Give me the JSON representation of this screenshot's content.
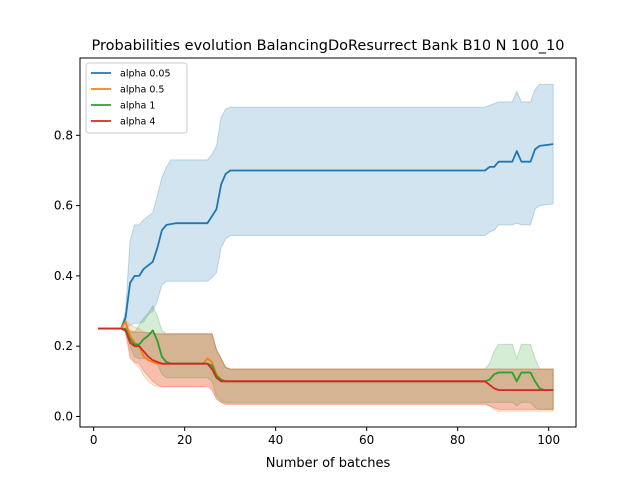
{
  "chart_data": {
    "type": "line",
    "title": "Probabilities evolution BalancingDoResurrect Bank B10 N 100_10",
    "xlabel": "Number of batches",
    "ylabel": "",
    "xlim": [
      -3,
      106
    ],
    "ylim": [
      -0.03,
      1.02
    ],
    "x_ticks": [
      0,
      20,
      40,
      60,
      80,
      100
    ],
    "y_ticks": [
      0.0,
      0.2,
      0.4,
      0.6,
      0.8
    ],
    "x_tick_labels": [
      "0",
      "20",
      "40",
      "60",
      "80",
      "100"
    ],
    "y_tick_labels": [
      "0.0",
      "0.2",
      "0.4",
      "0.6",
      "0.8"
    ],
    "grid": false,
    "legend_position": "top-left",
    "series": [
      {
        "name": "alpha 0.05",
        "color": "#1f77b4",
        "points": [
          [
            1,
            0.25
          ],
          [
            6,
            0.25
          ],
          [
            7,
            0.28
          ],
          [
            8,
            0.38
          ],
          [
            9,
            0.4
          ],
          [
            10,
            0.4
          ],
          [
            11,
            0.42
          ],
          [
            12,
            0.43
          ],
          [
            13,
            0.44
          ],
          [
            14,
            0.48
          ],
          [
            15,
            0.53
          ],
          [
            16,
            0.545
          ],
          [
            18,
            0.55
          ],
          [
            20,
            0.55
          ],
          [
            25,
            0.55
          ],
          [
            26,
            0.57
          ],
          [
            27,
            0.59
          ],
          [
            28,
            0.66
          ],
          [
            29,
            0.69
          ],
          [
            30,
            0.7
          ],
          [
            40,
            0.7
          ],
          [
            60,
            0.7
          ],
          [
            86,
            0.7
          ],
          [
            87,
            0.71
          ],
          [
            88,
            0.71
          ],
          [
            89,
            0.725
          ],
          [
            92,
            0.725
          ],
          [
            93,
            0.755
          ],
          [
            94,
            0.725
          ],
          [
            96,
            0.725
          ],
          [
            97,
            0.76
          ],
          [
            98,
            0.77
          ],
          [
            101,
            0.775
          ]
        ],
        "band_upper": [
          [
            1,
            0.25
          ],
          [
            6,
            0.25
          ],
          [
            7,
            0.3
          ],
          [
            8,
            0.5
          ],
          [
            9,
            0.545
          ],
          [
            10,
            0.545
          ],
          [
            11,
            0.56
          ],
          [
            12,
            0.57
          ],
          [
            13,
            0.58
          ],
          [
            14,
            0.63
          ],
          [
            15,
            0.68
          ],
          [
            16,
            0.71
          ],
          [
            17,
            0.73
          ],
          [
            20,
            0.73
          ],
          [
            25,
            0.73
          ],
          [
            26,
            0.745
          ],
          [
            27,
            0.77
          ],
          [
            28,
            0.85
          ],
          [
            29,
            0.875
          ],
          [
            30,
            0.88
          ],
          [
            86,
            0.88
          ],
          [
            87,
            0.885
          ],
          [
            88,
            0.89
          ],
          [
            89,
            0.895
          ],
          [
            92,
            0.895
          ],
          [
            93,
            0.925
          ],
          [
            94,
            0.895
          ],
          [
            96,
            0.895
          ],
          [
            97,
            0.93
          ],
          [
            98,
            0.945
          ],
          [
            101,
            0.945
          ]
        ],
        "band_lower": [
          [
            1,
            0.25
          ],
          [
            6,
            0.25
          ],
          [
            7,
            0.25
          ],
          [
            8,
            0.26
          ],
          [
            9,
            0.265
          ],
          [
            10,
            0.265
          ],
          [
            11,
            0.27
          ],
          [
            12,
            0.29
          ],
          [
            13,
            0.3
          ],
          [
            14,
            0.33
          ],
          [
            15,
            0.375
          ],
          [
            16,
            0.385
          ],
          [
            20,
            0.385
          ],
          [
            25,
            0.385
          ],
          [
            26,
            0.395
          ],
          [
            27,
            0.41
          ],
          [
            28,
            0.48
          ],
          [
            29,
            0.505
          ],
          [
            30,
            0.515
          ],
          [
            86,
            0.515
          ],
          [
            87,
            0.525
          ],
          [
            88,
            0.53
          ],
          [
            89,
            0.545
          ],
          [
            92,
            0.545
          ],
          [
            93,
            0.55
          ],
          [
            94,
            0.545
          ],
          [
            96,
            0.545
          ],
          [
            97,
            0.59
          ],
          [
            98,
            0.6
          ],
          [
            101,
            0.605
          ]
        ]
      },
      {
        "name": "alpha 0.5",
        "color": "#ff7f0e",
        "points": [
          [
            1,
            0.25
          ],
          [
            6,
            0.25
          ],
          [
            7,
            0.27
          ],
          [
            8,
            0.23
          ],
          [
            9,
            0.21
          ],
          [
            10,
            0.2
          ],
          [
            11,
            0.17
          ],
          [
            12,
            0.16
          ],
          [
            13,
            0.155
          ],
          [
            14,
            0.15
          ],
          [
            20,
            0.15
          ],
          [
            24,
            0.15
          ],
          [
            25,
            0.165
          ],
          [
            26,
            0.155
          ],
          [
            27,
            0.12
          ],
          [
            28,
            0.105
          ],
          [
            29,
            0.1
          ],
          [
            30,
            0.1
          ],
          [
            86,
            0.1
          ],
          [
            87,
            0.09
          ],
          [
            88,
            0.08
          ],
          [
            89,
            0.075
          ],
          [
            101,
            0.075
          ]
        ],
        "band_upper": [
          [
            1,
            0.25
          ],
          [
            6,
            0.25
          ],
          [
            7,
            0.275
          ],
          [
            8,
            0.26
          ],
          [
            9,
            0.255
          ],
          [
            10,
            0.25
          ],
          [
            11,
            0.24
          ],
          [
            14,
            0.235
          ],
          [
            20,
            0.235
          ],
          [
            24,
            0.235
          ],
          [
            25,
            0.235
          ],
          [
            26,
            0.235
          ],
          [
            27,
            0.19
          ],
          [
            28,
            0.165
          ],
          [
            29,
            0.14
          ],
          [
            30,
            0.135
          ],
          [
            86,
            0.135
          ],
          [
            87,
            0.135
          ],
          [
            101,
            0.135
          ]
        ],
        "band_lower": [
          [
            1,
            0.25
          ],
          [
            6,
            0.25
          ],
          [
            7,
            0.245
          ],
          [
            8,
            0.18
          ],
          [
            9,
            0.15
          ],
          [
            10,
            0.14
          ],
          [
            11,
            0.115
          ],
          [
            12,
            0.1
          ],
          [
            13,
            0.09
          ],
          [
            14,
            0.085
          ],
          [
            20,
            0.085
          ],
          [
            24,
            0.085
          ],
          [
            25,
            0.09
          ],
          [
            26,
            0.08
          ],
          [
            27,
            0.05
          ],
          [
            28,
            0.04
          ],
          [
            29,
            0.035
          ],
          [
            30,
            0.035
          ],
          [
            86,
            0.035
          ],
          [
            87,
            0.03
          ],
          [
            88,
            0.02
          ],
          [
            89,
            0.015
          ],
          [
            101,
            0.015
          ]
        ]
      },
      {
        "name": "alpha 1",
        "color": "#2ca02c",
        "points": [
          [
            1,
            0.25
          ],
          [
            6,
            0.25
          ],
          [
            7,
            0.25
          ],
          [
            8,
            0.22
          ],
          [
            9,
            0.205
          ],
          [
            10,
            0.205
          ],
          [
            11,
            0.22
          ],
          [
            12,
            0.23
          ],
          [
            13,
            0.245
          ],
          [
            14,
            0.215
          ],
          [
            15,
            0.17
          ],
          [
            16,
            0.155
          ],
          [
            17,
            0.15
          ],
          [
            24,
            0.15
          ],
          [
            25,
            0.15
          ],
          [
            26,
            0.145
          ],
          [
            27,
            0.115
          ],
          [
            28,
            0.105
          ],
          [
            29,
            0.1
          ],
          [
            30,
            0.1
          ],
          [
            86,
            0.1
          ],
          [
            87,
            0.105
          ],
          [
            88,
            0.12
          ],
          [
            89,
            0.125
          ],
          [
            92,
            0.125
          ],
          [
            93,
            0.1
          ],
          [
            94,
            0.125
          ],
          [
            96,
            0.125
          ],
          [
            97,
            0.1
          ],
          [
            98,
            0.08
          ],
          [
            99,
            0.075
          ],
          [
            101,
            0.075
          ]
        ],
        "band_upper": [
          [
            1,
            0.25
          ],
          [
            6,
            0.25
          ],
          [
            7,
            0.25
          ],
          [
            8,
            0.24
          ],
          [
            9,
            0.24
          ],
          [
            10,
            0.26
          ],
          [
            11,
            0.28
          ],
          [
            12,
            0.295
          ],
          [
            13,
            0.315
          ],
          [
            14,
            0.285
          ],
          [
            15,
            0.245
          ],
          [
            16,
            0.235
          ],
          [
            20,
            0.235
          ],
          [
            25,
            0.235
          ],
          [
            26,
            0.235
          ],
          [
            27,
            0.19
          ],
          [
            28,
            0.165
          ],
          [
            29,
            0.14
          ],
          [
            30,
            0.135
          ],
          [
            86,
            0.135
          ],
          [
            87,
            0.15
          ],
          [
            88,
            0.185
          ],
          [
            89,
            0.205
          ],
          [
            92,
            0.205
          ],
          [
            93,
            0.165
          ],
          [
            94,
            0.205
          ],
          [
            96,
            0.205
          ],
          [
            97,
            0.165
          ],
          [
            98,
            0.135
          ],
          [
            101,
            0.135
          ]
        ],
        "band_lower": [
          [
            1,
            0.25
          ],
          [
            6,
            0.25
          ],
          [
            7,
            0.25
          ],
          [
            8,
            0.2
          ],
          [
            9,
            0.17
          ],
          [
            10,
            0.165
          ],
          [
            11,
            0.165
          ],
          [
            12,
            0.165
          ],
          [
            13,
            0.17
          ],
          [
            14,
            0.15
          ],
          [
            15,
            0.12
          ],
          [
            16,
            0.11
          ],
          [
            20,
            0.11
          ],
          [
            25,
            0.11
          ],
          [
            26,
            0.1
          ],
          [
            27,
            0.06
          ],
          [
            28,
            0.045
          ],
          [
            29,
            0.04
          ],
          [
            30,
            0.04
          ],
          [
            86,
            0.04
          ],
          [
            87,
            0.04
          ],
          [
            88,
            0.04
          ],
          [
            89,
            0.04
          ],
          [
            92,
            0.04
          ],
          [
            93,
            0.03
          ],
          [
            94,
            0.04
          ],
          [
            96,
            0.04
          ],
          [
            97,
            0.025
          ],
          [
            98,
            0.02
          ],
          [
            101,
            0.02
          ]
        ]
      },
      {
        "name": "alpha 4",
        "color": "#d62728",
        "points": [
          [
            1,
            0.25
          ],
          [
            6,
            0.25
          ],
          [
            7,
            0.245
          ],
          [
            8,
            0.21
          ],
          [
            9,
            0.2
          ],
          [
            10,
            0.2
          ],
          [
            11,
            0.185
          ],
          [
            12,
            0.17
          ],
          [
            13,
            0.16
          ],
          [
            14,
            0.155
          ],
          [
            15,
            0.15
          ],
          [
            24,
            0.15
          ],
          [
            25,
            0.15
          ],
          [
            26,
            0.135
          ],
          [
            27,
            0.11
          ],
          [
            28,
            0.1
          ],
          [
            30,
            0.1
          ],
          [
            86,
            0.1
          ],
          [
            87,
            0.09
          ],
          [
            88,
            0.08
          ],
          [
            89,
            0.075
          ],
          [
            101,
            0.075
          ]
        ],
        "band_upper": [
          [
            1,
            0.25
          ],
          [
            6,
            0.25
          ],
          [
            7,
            0.25
          ],
          [
            8,
            0.245
          ],
          [
            9,
            0.24
          ],
          [
            10,
            0.24
          ],
          [
            11,
            0.24
          ],
          [
            14,
            0.235
          ],
          [
            20,
            0.235
          ],
          [
            25,
            0.235
          ],
          [
            26,
            0.235
          ],
          [
            27,
            0.19
          ],
          [
            28,
            0.165
          ],
          [
            29,
            0.14
          ],
          [
            30,
            0.135
          ],
          [
            101,
            0.135
          ]
        ],
        "band_lower": [
          [
            1,
            0.25
          ],
          [
            6,
            0.25
          ],
          [
            7,
            0.24
          ],
          [
            8,
            0.165
          ],
          [
            9,
            0.155
          ],
          [
            10,
            0.15
          ],
          [
            11,
            0.13
          ],
          [
            12,
            0.115
          ],
          [
            13,
            0.1
          ],
          [
            14,
            0.09
          ],
          [
            15,
            0.085
          ],
          [
            20,
            0.085
          ],
          [
            25,
            0.085
          ],
          [
            26,
            0.075
          ],
          [
            27,
            0.05
          ],
          [
            28,
            0.04
          ],
          [
            29,
            0.035
          ],
          [
            30,
            0.035
          ],
          [
            86,
            0.035
          ],
          [
            87,
            0.03
          ],
          [
            88,
            0.025
          ],
          [
            89,
            0.02
          ],
          [
            101,
            0.02
          ]
        ]
      }
    ]
  }
}
